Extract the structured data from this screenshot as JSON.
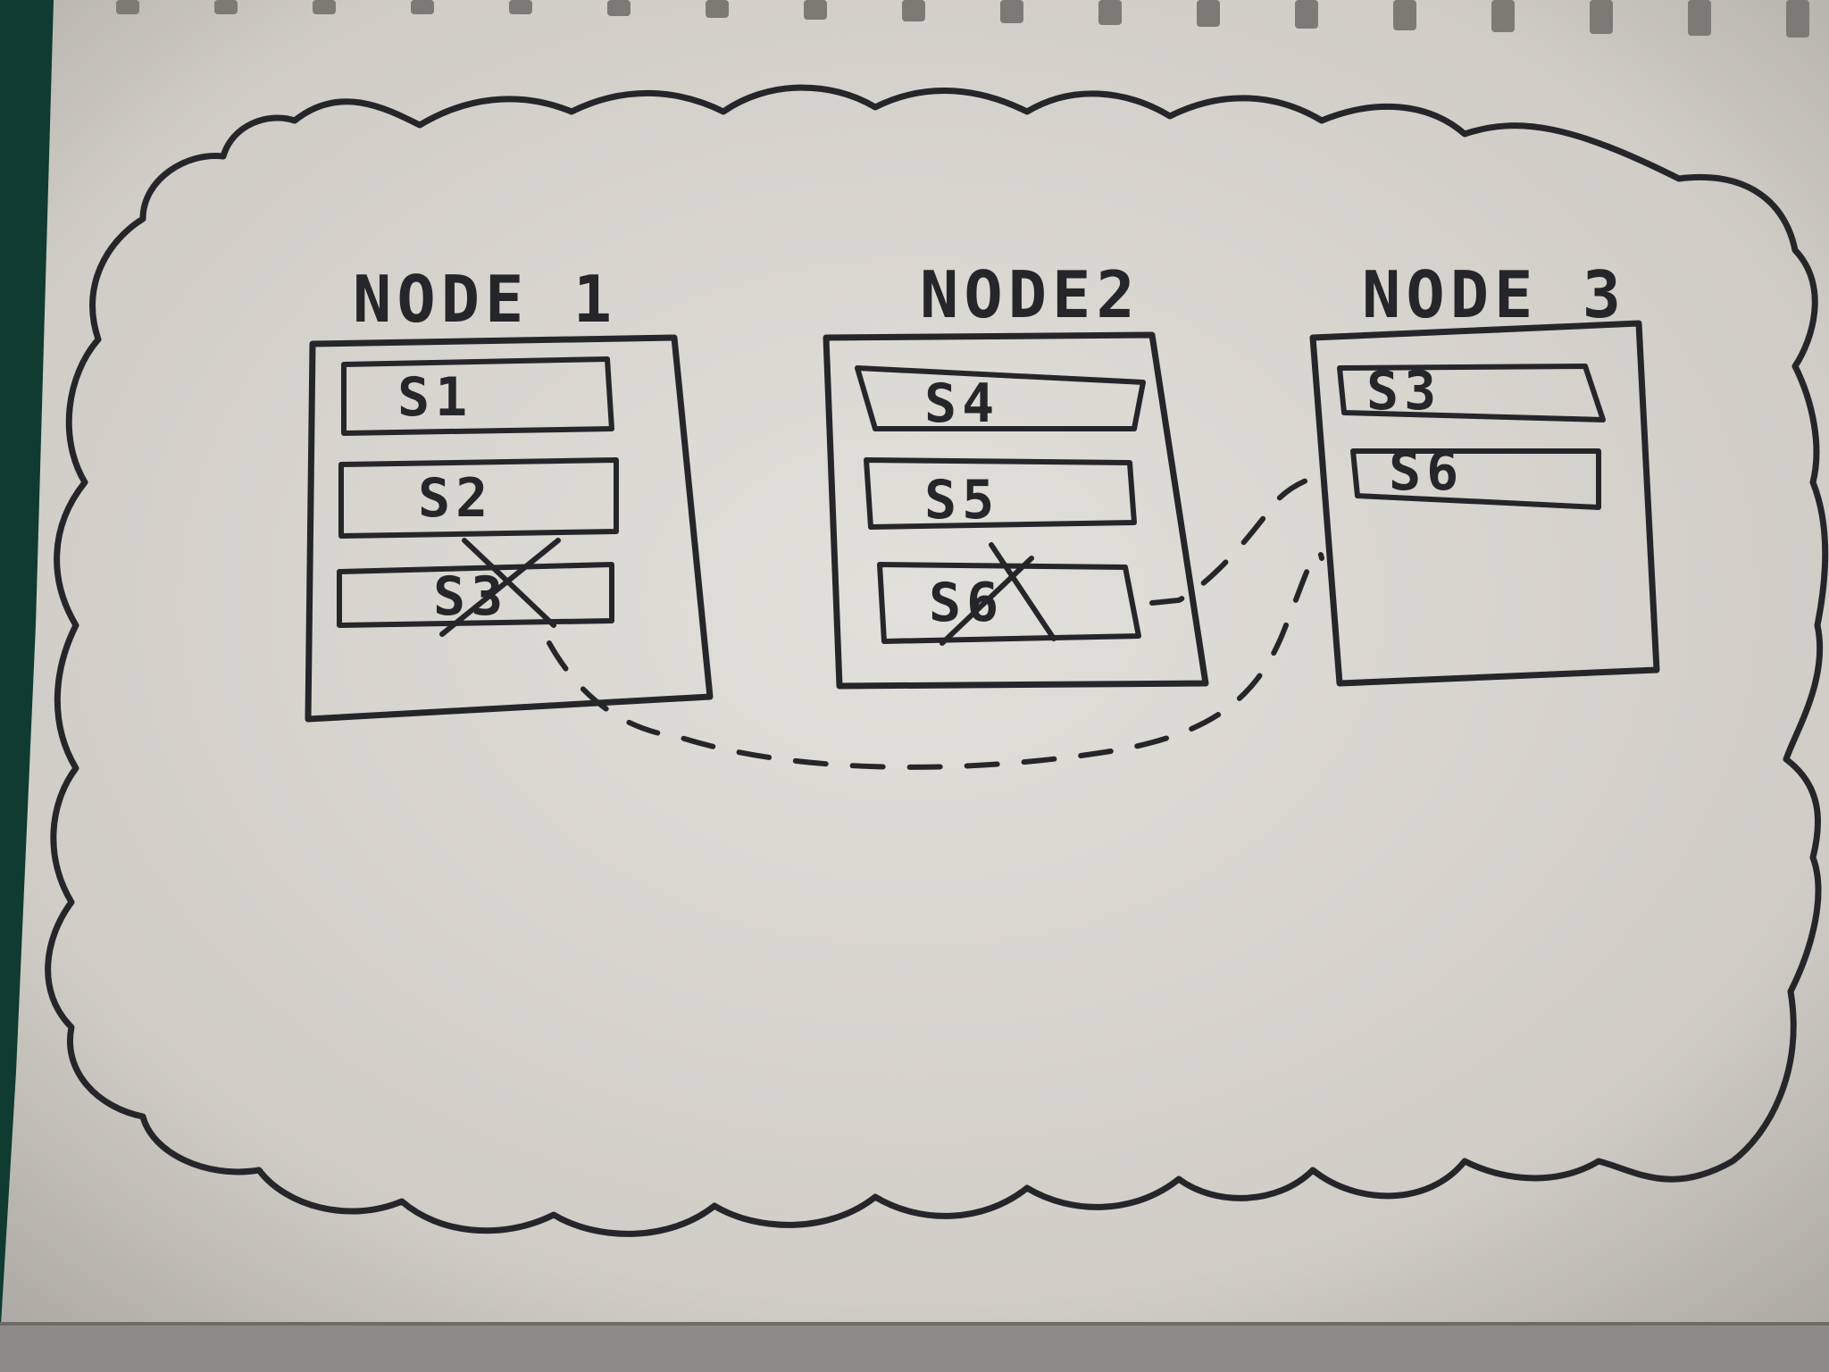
{
  "diagram": {
    "nodes": [
      {
        "title": "NODE 1",
        "shards": [
          {
            "label": "S1",
            "crossed": false
          },
          {
            "label": "S2",
            "crossed": false
          },
          {
            "label": "S3",
            "crossed": true
          }
        ]
      },
      {
        "title": "NODE2",
        "shards": [
          {
            "label": "S4",
            "crossed": false
          },
          {
            "label": "S5",
            "crossed": false
          },
          {
            "label": "S6",
            "crossed": true
          }
        ]
      },
      {
        "title": "NODE 3",
        "shards": [
          {
            "label": "S3",
            "crossed": false
          },
          {
            "label": "S6",
            "crossed": false
          }
        ]
      }
    ],
    "relocations": [
      {
        "shard": "S3",
        "from": "NODE 1",
        "to": "NODE 3"
      },
      {
        "shard": "S6",
        "from": "NODE2",
        "to": "NODE 3"
      }
    ]
  },
  "colors": {
    "ink": "#25262a",
    "paper": "#d9d7d1",
    "background": "#0f3b30"
  }
}
